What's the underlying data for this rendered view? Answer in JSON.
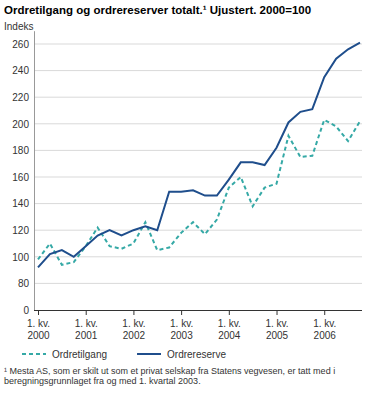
{
  "chart_data": {
    "type": "line",
    "title": "Ordretilgang og ordrereserver totalt.¹ Ujustert. 2000=100",
    "y_label": "Indeks",
    "footnote": "¹ Mesta AS, som er skilt ut som et privat selskap fra Statens vegvesen, er tatt med i beregningsgrunnlaget fra og med 1. kvartal 2003.",
    "categories": [
      "1. kv. 2000",
      null,
      null,
      null,
      "1. kv. 2001",
      null,
      null,
      null,
      "1. kv. 2002",
      null,
      null,
      null,
      "1. kv. 2003",
      null,
      null,
      null,
      "1. kv. 2004",
      null,
      null,
      null,
      "1. kv. 2005",
      null,
      null,
      null,
      "1. kv. 2006",
      null,
      null,
      null
    ],
    "series": [
      {
        "name": "Ordretilgang",
        "color": "#35a9a6",
        "line_style": "dashed",
        "values": [
          98,
          110,
          94,
          96,
          108,
          122,
          108,
          106,
          110,
          126,
          105,
          107,
          118,
          126,
          117,
          128,
          152,
          160,
          138,
          152,
          155,
          191,
          175,
          176,
          203,
          198,
          187,
          202
        ]
      },
      {
        "name": "Ordrereserve",
        "color": "#1f4e8c",
        "line_style": "solid",
        "values": [
          92,
          102,
          105,
          100,
          108,
          116,
          120,
          116,
          120,
          123,
          120,
          149,
          149,
          150,
          146,
          146,
          158,
          171,
          171,
          169,
          182,
          201,
          209,
          211,
          235,
          249,
          256,
          261
        ]
      }
    ],
    "ylim": [
      0,
      270
    ],
    "yticks": [
      0,
      80,
      100,
      120,
      140,
      160,
      180,
      200,
      220,
      240,
      260
    ],
    "grid": true,
    "legend": "bottom"
  }
}
